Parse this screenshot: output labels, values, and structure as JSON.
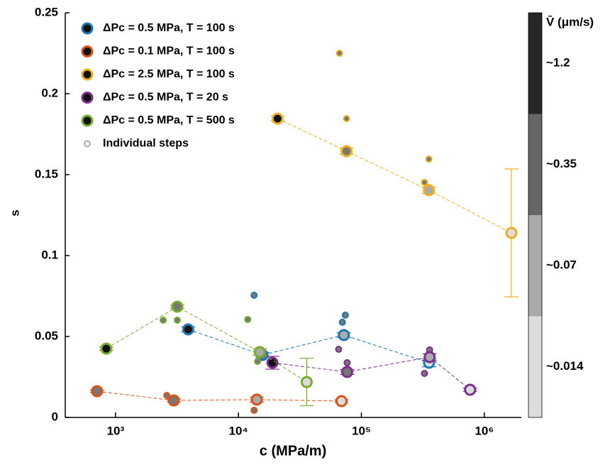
{
  "chart_data": {
    "type": "scatter",
    "x_label": "c (MPa/m)",
    "y_label": "s",
    "xscale": "log",
    "xlim": [
      390,
      2000000
    ],
    "ylim": [
      0,
      0.25
    ],
    "xticks": [
      {
        "value": 1000,
        "label": "10³"
      },
      {
        "value": 10000,
        "label": "10⁴"
      },
      {
        "value": 100000,
        "label": "10⁵"
      },
      {
        "value": 1000000,
        "label": "10⁶"
      }
    ],
    "yticks": [
      0,
      0.05,
      0.1,
      0.15,
      0.2,
      0.25
    ],
    "legend": "upper left",
    "steps_label": "Individual steps",
    "steps_color": "#aaaaaa",
    "series": [
      {
        "name": "ΔPc = 0.5 MPa, T = 100 s",
        "color": "#1f77b4",
        "x": [
          3900,
          15700,
          72000,
          355000
        ],
        "values": [
          0.0544,
          0.0386,
          0.0509,
          0.0338
        ],
        "errors": [
          0.0015,
          0.0015,
          0.0015,
          0.0025
        ],
        "centers": [
          "#111111",
          "#777777",
          "#aaaaaa",
          "#dddddd"
        ],
        "steps_x": [
          13400,
          74000,
          70000
        ],
        "steps_values": [
          0.0755,
          0.0632,
          0.0588
        ]
      },
      {
        "name": "ΔPc = 0.1 MPa, T = 100 s",
        "color": "#d95319",
        "x": [
          707,
          2980,
          14100,
          68900
        ],
        "values": [
          0.0162,
          0.0105,
          0.011,
          0.0101
        ],
        "errors": [
          0.0008,
          0.0008,
          0.0015,
          0.0008
        ],
        "centers": [
          "#777777",
          "#777777",
          "#aaaaaa",
          "#dddddd"
        ],
        "steps_x": [
          2610,
          13400
        ],
        "steps_values": [
          0.0136,
          0.0044
        ]
      },
      {
        "name": "ΔPc = 2.5 MPa, T = 100 s",
        "color": "#edb120",
        "x": [
          20800,
          75700,
          354000,
          1660000
        ],
        "values": [
          0.1846,
          0.1645,
          0.1404,
          0.114
        ],
        "errors": [
          0.0015,
          0.002,
          0.002,
          0.0395
        ],
        "centers": [
          "#111111",
          "#777777",
          "#aaaaaa",
          "#dddddd"
        ],
        "steps_x": [
          66300,
          75700,
          354000,
          326000
        ],
        "steps_values": [
          0.225,
          0.1846,
          0.1596,
          0.1452
        ]
      },
      {
        "name": "ΔPc = 0.5 MPa, T = 20 s",
        "color": "#7e2f8e",
        "x": [
          18900,
          76600,
          359000,
          766000
        ],
        "values": [
          0.0338,
          0.0281,
          0.0373,
          0.0171
        ],
        "errors": [
          0.004,
          0.0015,
          0.002,
          0.001
        ],
        "centers": [
          "#111111",
          "#777777",
          "#aaaaaa",
          "#dddddd"
        ],
        "steps_x": [
          65300,
          76600,
          359000,
          326000
        ],
        "steps_values": [
          0.0421,
          0.0338,
          0.0417,
          0.0272
        ]
      },
      {
        "name": "ΔPc = 0.5 MPa, T = 500 s",
        "color": "#77ac30",
        "x": [
          841,
          3180,
          14900,
          35900
        ],
        "values": [
          0.0425,
          0.0684,
          0.0404,
          0.0219
        ],
        "errors": [
          0.001,
          0.001,
          0.002,
          0.0147
        ],
        "centers": [
          "#111111",
          "#777777",
          "#aaaaaa",
          "#dddddd"
        ],
        "steps_x": [
          2440,
          3180,
          11900,
          14300
        ],
        "steps_values": [
          0.0601,
          0.0601,
          0.0605,
          0.0346
        ]
      }
    ],
    "colorbar": {
      "title": "V̄ (μm/s)",
      "labels": [
        "~0.014",
        "~0.07",
        "~0.35",
        "~1.2"
      ],
      "colors": [
        "#dddddd",
        "#aaaaaa",
        "#666666",
        "#262626"
      ]
    }
  }
}
